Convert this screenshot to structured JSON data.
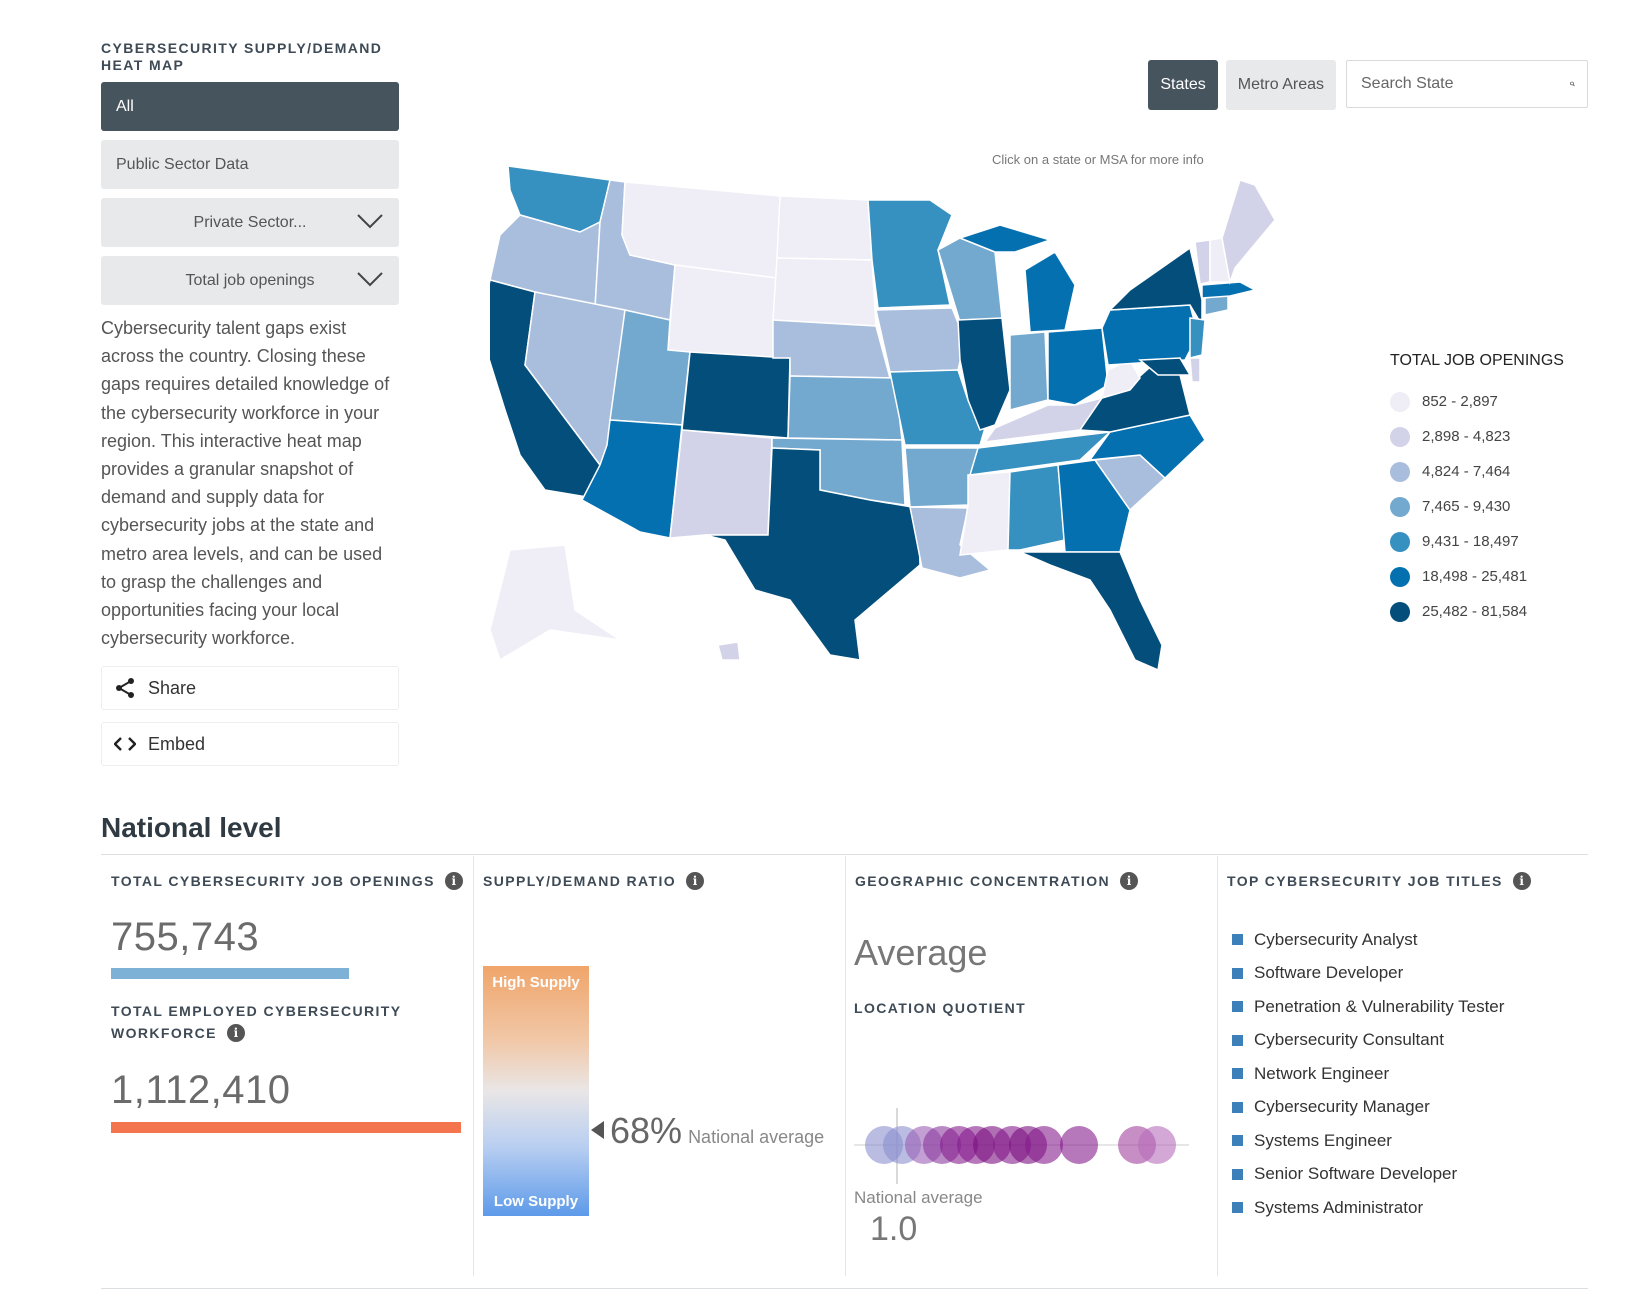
{
  "sidebar": {
    "title": "CYBERSECURITY SUPPLY/DEMAND HEAT MAP",
    "buttons": [
      "All",
      "Public Sector Data"
    ],
    "dropdowns": [
      "Private Sector...",
      "Total job openings"
    ],
    "description": "Cybersecurity talent gaps exist across the country. Closing these gaps requires detailed knowledge of the cybersecurity workforce in your region. This interactive heat map provides a granular snapshot of demand and supply data for cybersecurity jobs at the state and metro area levels, and can be used to grasp the challenges and opportunities facing your local cybersecurity workforce.",
    "share_label": "Share",
    "embed_label": "Embed"
  },
  "toolbar": {
    "states_label": "States",
    "metro_label": "Metro Areas",
    "search_placeholder": "Search State"
  },
  "map": {
    "hint": "Click on a state or MSA for more info"
  },
  "legend": {
    "title": "TOTAL JOB OPENINGS",
    "items": [
      {
        "label": "852 - 2,897",
        "color": "#efedf5"
      },
      {
        "label": "2,898 - 4,823",
        "color": "#d2d3e8"
      },
      {
        "label": "4,824 - 7,464",
        "color": "#a9bedc"
      },
      {
        "label": "7,465 - 9,430",
        "color": "#74a9cf"
      },
      {
        "label": "9,431 - 18,497",
        "color": "#3690c0"
      },
      {
        "label": "18,498 - 25,481",
        "color": "#0570b0"
      },
      {
        "label": "25,482 - 81,584",
        "color": "#034e7b"
      }
    ]
  },
  "national": {
    "heading": "National level",
    "openings_title": "TOTAL CYBERSECURITY JOB OPENINGS",
    "openings_value": "755,743",
    "workforce_title_1": "TOTAL EMPLOYED CYBERSECURITY",
    "workforce_title_2": "WORKFORCE",
    "workforce_value": "1,112,410",
    "ratio_title": "SUPPLY/DEMAND RATIO",
    "high_supply": "High Supply",
    "low_supply": "Low Supply",
    "ratio_value": "68%",
    "ratio_note": "National average",
    "geo_title": "GEOGRAPHIC CONCENTRATION",
    "geo_value": "Average",
    "lq_title": "LOCATION QUOTIENT",
    "lq_note": "National average",
    "lq_value": "1.0",
    "jobs_title": "TOP CYBERSECURITY JOB TITLES",
    "jobs": [
      "Cybersecurity Analyst",
      "Software Developer",
      "Penetration & Vulnerability Tester",
      "Cybersecurity Consultant",
      "Network Engineer",
      "Cybersecurity Manager",
      "Systems Engineer",
      "Senior Software Developer",
      "Systems Administrator"
    ]
  },
  "colors": {
    "openings_bar": "#7eb1d6",
    "workforce_bar": "#f4744d",
    "dark_button": "#46545d"
  }
}
